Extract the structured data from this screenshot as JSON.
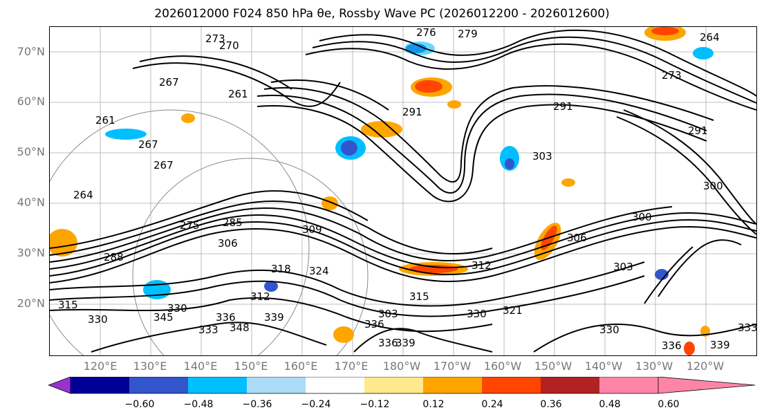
{
  "title": "2026012000 F024 850 hPa θe, Rossby Wave PC (2026012200 - 2026012600)",
  "lat_labels": [
    "70°N",
    "60°N",
    "50°N",
    "40°N",
    "30°N",
    "20°N"
  ],
  "lon_labels": [
    "120°E",
    "130°E",
    "140°E",
    "150°E",
    "160°E",
    "170°E",
    "180°W",
    "170°W",
    "160°W",
    "150°W",
    "140°W",
    "130°W",
    "120°W"
  ],
  "contour_labels": [
    "273",
    "270",
    "276",
    "279",
    "264",
    "267",
    "261",
    "291",
    "273",
    "291",
    "291",
    "261",
    "267",
    "264",
    "267",
    "303",
    "300",
    "275",
    "285",
    "309",
    "306",
    "300",
    "306",
    "288",
    "312",
    "303",
    "315",
    "318",
    "330",
    "324",
    "312",
    "303",
    "315",
    "345",
    "330",
    "333",
    "336",
    "339",
    "348",
    "336",
    "336",
    "339",
    "330",
    "321",
    "330",
    "336",
    "339",
    "333"
  ],
  "colorbar": {
    "colors": [
      "#9933cc",
      "#000099",
      "#3355cc",
      "#00bfff",
      "#aadcf5",
      "#ffffff",
      "#ffe98a",
      "#ffa500",
      "#ff4500",
      "#b22222",
      "#ff85a8"
    ],
    "ticks": [
      "−0.60",
      "−0.48",
      "−0.36",
      "−0.24",
      "−0.12",
      "0.12",
      "0.24",
      "0.36",
      "0.48",
      "0.60"
    ]
  }
}
